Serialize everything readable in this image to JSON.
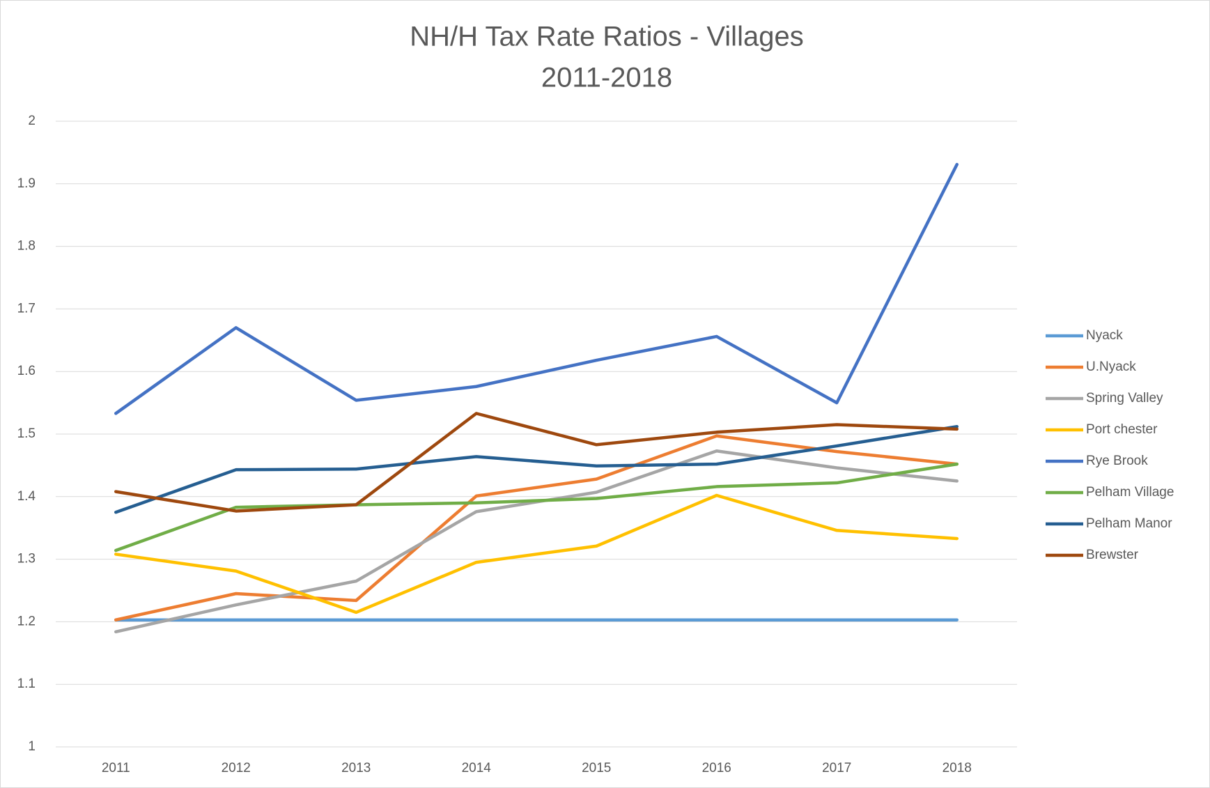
{
  "chart_data": {
    "type": "line",
    "title": "NH/H Tax Rate Ratios - Villages",
    "subtitle": "2011-2018",
    "categories": [
      "2011",
      "2012",
      "2013",
      "2014",
      "2015",
      "2016",
      "2017",
      "2018"
    ],
    "series": [
      {
        "name": "Nyack",
        "color": "#5b9bd5",
        "values": [
          1.203,
          1.203,
          1.203,
          1.203,
          1.203,
          1.203,
          1.203,
          1.203
        ]
      },
      {
        "name": "U.Nyack",
        "color": "#ed7d31",
        "values": [
          1.203,
          1.245,
          1.234,
          1.401,
          1.428,
          1.497,
          1.472,
          1.452
        ]
      },
      {
        "name": "Spring Valley",
        "color": "#a5a5a5",
        "values": [
          1.184,
          1.227,
          1.265,
          1.376,
          1.407,
          1.473,
          1.446,
          1.425
        ]
      },
      {
        "name": "Port chester",
        "color": "#ffc000",
        "values": [
          1.308,
          1.281,
          1.215,
          1.295,
          1.321,
          1.402,
          1.346,
          1.333
        ]
      },
      {
        "name": "Rye Brook",
        "color": "#4472c4",
        "values": [
          1.533,
          1.67,
          1.554,
          1.576,
          1.618,
          1.656,
          1.55,
          1.931
        ]
      },
      {
        "name": "Pelham Village",
        "color": "#70ad47",
        "values": [
          1.314,
          1.383,
          1.387,
          1.39,
          1.397,
          1.416,
          1.422,
          1.452
        ]
      },
      {
        "name": "Pelham Manor",
        "color": "#255e91",
        "values": [
          1.375,
          1.443,
          1.444,
          1.464,
          1.449,
          1.452,
          1.481,
          1.512
        ]
      },
      {
        "name": "Brewster",
        "color": "#9e480e",
        "values": [
          1.408,
          1.377,
          1.387,
          1.533,
          1.483,
          1.503,
          1.515,
          1.508
        ]
      }
    ],
    "ylim": [
      1,
      2
    ],
    "yticks": [
      1,
      1.1,
      1.2,
      1.3,
      1.4,
      1.5,
      1.6,
      1.7,
      1.8,
      1.9,
      2
    ],
    "grid": true,
    "legend": "right"
  }
}
